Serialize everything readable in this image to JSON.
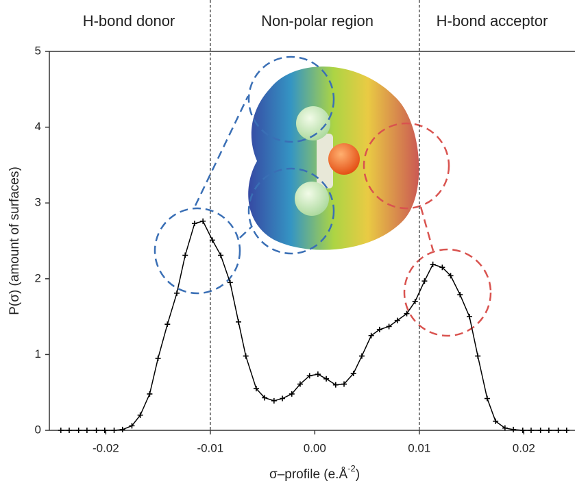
{
  "chart_data": {
    "type": "line",
    "x_label": "σ–profile (e.Å",
    "x_label_sup": "-2",
    "x_label_end": ")",
    "y_label": "P(σ) (amount of surfaces)",
    "regions": [
      "H-bond donor",
      "Non-polar region",
      "H-bond acceptor"
    ],
    "vlines": [
      -0.01,
      0.01
    ],
    "xlim": [
      -0.0254,
      0.0249
    ],
    "ylim": [
      0,
      5
    ],
    "xticks": [
      -0.02,
      -0.01,
      {
        "value": 0,
        "label": "0.00"
      },
      0.01,
      0.02
    ],
    "yticks": [
      0,
      1,
      2,
      3,
      4,
      5
    ],
    "series": [
      {
        "color": "#000000",
        "x": [
          -0.0243,
          -0.0235,
          -0.0226,
          -0.0218,
          -0.0209,
          -0.0201,
          -0.0192,
          -0.0184,
          -0.0175,
          -0.0167,
          -0.0158,
          -0.015,
          -0.0141,
          -0.0132,
          -0.0124,
          -0.0115,
          -0.0107,
          -0.0098,
          -0.009,
          -0.0081,
          -0.0073,
          -0.0066,
          -0.0056,
          -0.0048,
          -0.0039,
          -0.0031,
          -0.0022,
          -0.0014,
          -0.0005,
          0.0003,
          0.0011,
          0.002,
          0.0028,
          0.0037,
          0.0045,
          0.0054,
          0.0062,
          0.0071,
          0.0079,
          0.0088,
          0.0096,
          0.0105,
          0.0113,
          0.0122,
          0.013,
          0.0139,
          0.0148,
          0.0156,
          0.0165,
          0.0173,
          0.0182,
          0.019,
          0.0199,
          0.0207,
          0.0216,
          0.0224,
          0.0233,
          0.0241
        ],
        "values": [
          0,
          0,
          0,
          0,
          0,
          0,
          0,
          0.01,
          0.06,
          0.2,
          0.48,
          0.95,
          1.4,
          1.81,
          2.31,
          2.73,
          2.76,
          2.51,
          2.31,
          1.95,
          1.43,
          0.98,
          0.55,
          0.43,
          0.39,
          0.42,
          0.48,
          0.61,
          0.72,
          0.74,
          0.68,
          0.6,
          0.61,
          0.75,
          0.98,
          1.25,
          1.33,
          1.37,
          1.45,
          1.54,
          1.7,
          1.97,
          2.19,
          2.15,
          2.04,
          1.79,
          1.5,
          0.98,
          0.42,
          0.12,
          0.03,
          0.01,
          0,
          0,
          0,
          0,
          0,
          0
        ]
      }
    ]
  }
}
